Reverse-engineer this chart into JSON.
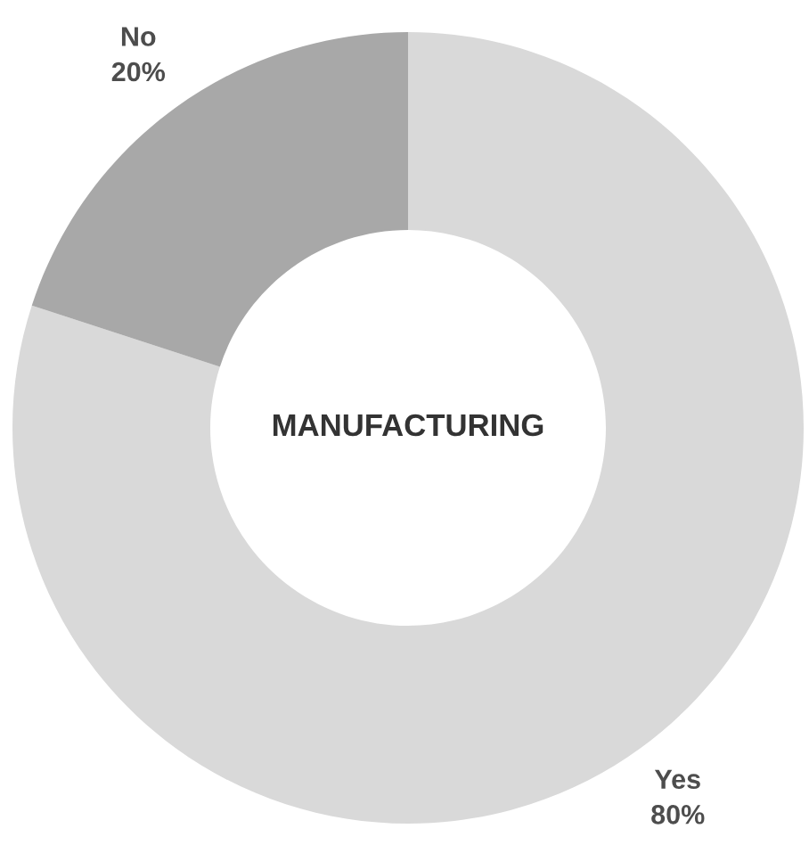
{
  "chart_data": {
    "type": "donut",
    "title": "MANUFACTURING",
    "categories": [
      "Yes",
      "No"
    ],
    "values": [
      80,
      20
    ],
    "value_labels": [
      "80%",
      "20%"
    ],
    "colors": [
      "#d9d9d9",
      "#a8a8a8"
    ],
    "legend": false
  }
}
